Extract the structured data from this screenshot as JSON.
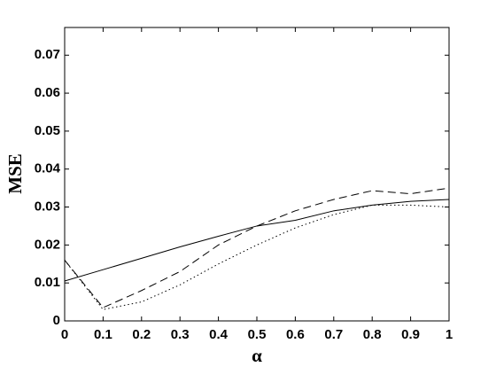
{
  "chart_data": {
    "type": "line",
    "xlabel": "α",
    "ylabel": "MSE",
    "x": [
      0,
      0.1,
      0.2,
      0.3,
      0.4,
      0.5,
      0.6,
      0.7,
      0.8,
      0.9,
      1
    ],
    "series": [
      {
        "color": "#000000",
        "dash": "solid",
        "values": [
          0.0105,
          0.0135,
          0.0165,
          0.0195,
          0.0223,
          0.025,
          0.0265,
          0.029,
          0.0305,
          0.0315,
          0.032
        ]
      },
      {
        "color": "#000000",
        "dash": "dashed",
        "values": [
          0.016,
          0.0035,
          0.008,
          0.013,
          0.02,
          0.025,
          0.029,
          0.032,
          0.0343,
          0.0335,
          0.035
        ]
      },
      {
        "color": "#000000",
        "dash": "dotted",
        "values": [
          0.016,
          0.003,
          0.005,
          0.0095,
          0.015,
          0.02,
          0.0245,
          0.028,
          0.0305,
          0.0305,
          0.03
        ]
      }
    ],
    "xlim": [
      0,
      1
    ],
    "xticks": [
      0,
      0.1,
      0.2,
      0.3,
      0.4,
      0.5,
      0.6,
      0.7,
      0.8,
      0.9,
      1
    ],
    "ylim": [
      0,
      0.0773
    ],
    "yticks": [
      0,
      0.01,
      0.02,
      0.03,
      0.04,
      0.05,
      0.06,
      0.07
    ],
    "grid": false
  }
}
